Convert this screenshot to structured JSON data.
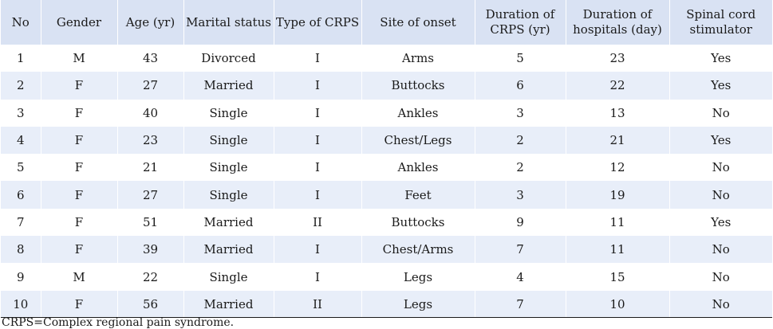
{
  "table": {
    "columns": [
      "No",
      "Gender",
      "Age (yr)",
      "Marital status",
      "Type of CRPS",
      "Site of onset",
      "Duration of CRPS (yr)",
      "Duration of hospitals (day)",
      "Spinal cord stimulator"
    ],
    "rows": [
      [
        "1",
        "M",
        "43",
        "Divorced",
        "I",
        "Arms",
        "5",
        "23",
        "Yes"
      ],
      [
        "2",
        "F",
        "27",
        "Married",
        "I",
        "Buttocks",
        "6",
        "22",
        "Yes"
      ],
      [
        "3",
        "F",
        "40",
        "Single",
        "I",
        "Ankles",
        "3",
        "13",
        "No"
      ],
      [
        "4",
        "F",
        "23",
        "Single",
        "I",
        "Chest/Legs",
        "2",
        "21",
        "Yes"
      ],
      [
        "5",
        "F",
        "21",
        "Single",
        "I",
        "Ankles",
        "2",
        "12",
        "No"
      ],
      [
        "6",
        "F",
        "27",
        "Single",
        "I",
        "Feet",
        "3",
        "19",
        "No"
      ],
      [
        "7",
        "F",
        "51",
        "Married",
        "II",
        "Buttocks",
        "9",
        "11",
        "Yes"
      ],
      [
        "8",
        "F",
        "39",
        "Married",
        "I",
        "Chest/Arms",
        "7",
        "11",
        "No"
      ],
      [
        "9",
        "M",
        "22",
        "Single",
        "I",
        "Legs",
        "4",
        "15",
        "No"
      ],
      [
        "10",
        "F",
        "56",
        "Married",
        "II",
        "Legs",
        "7",
        "10",
        "No"
      ]
    ]
  },
  "footnote": "CRPS=Complex regional pain syndrome.",
  "colors": {
    "header_background": "#d9e2f3",
    "alternate_row_background": "#e8eef9"
  }
}
